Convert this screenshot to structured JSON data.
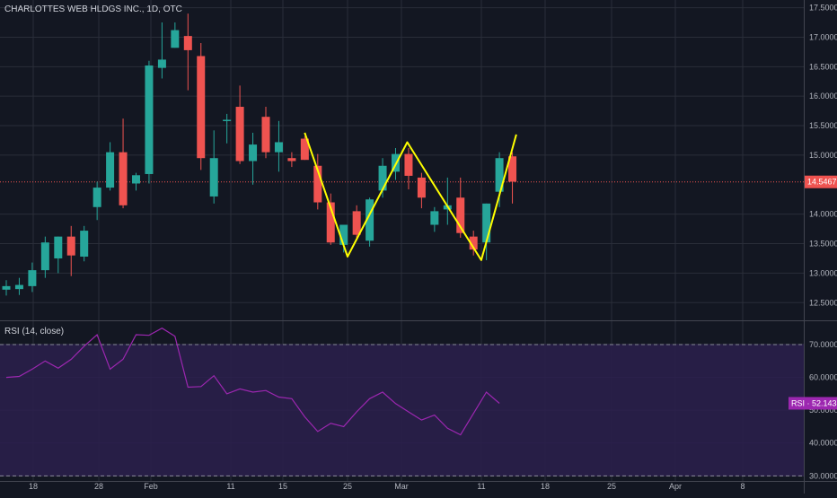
{
  "header": {
    "symbol_title": "CHARLOTTES WEB HLDGS INC., 1D, OTC",
    "rsi_title": "RSI (14, close)"
  },
  "colors": {
    "background": "#131722",
    "grid": "#2a2e39",
    "up": "#26a69a",
    "down": "#ef5350",
    "pattern": "#ffff00",
    "rsi_line": "#9c27b0",
    "rsi_band": "#2a1f4a",
    "last_price_line": "#ef5350"
  },
  "chart_data": [
    {
      "type": "candlestick",
      "title": "CHARLOTTES WEB HLDGS INC., 1D, OTC",
      "x_ticks": [
        "18",
        "28",
        "Feb",
        "11",
        "15",
        "25",
        "Mar",
        "11",
        "18",
        "25",
        "Apr",
        "8"
      ],
      "y_ticks": [
        "12.5000",
        "13.0000",
        "13.5000",
        "14.0000",
        "15.0000",
        "15.5000",
        "16.0000",
        "16.5000",
        "17.0000",
        "17.5000"
      ],
      "ylim": [
        12.2,
        17.6
      ],
      "last_price": 14.5467,
      "last_price_label": "14.5467",
      "candles": [
        {
          "o": 12.72,
          "h": 12.88,
          "l": 12.62,
          "c": 12.78
        },
        {
          "o": 12.73,
          "h": 12.92,
          "l": 12.63,
          "c": 12.8
        },
        {
          "o": 12.78,
          "h": 13.18,
          "l": 12.68,
          "c": 13.05
        },
        {
          "o": 13.05,
          "h": 13.62,
          "l": 12.92,
          "c": 13.52
        },
        {
          "o": 13.25,
          "h": 13.62,
          "l": 13.0,
          "c": 13.62
        },
        {
          "o": 13.62,
          "h": 13.8,
          "l": 12.95,
          "c": 13.3
        },
        {
          "o": 13.28,
          "h": 13.8,
          "l": 13.2,
          "c": 13.72
        },
        {
          "o": 14.12,
          "h": 14.55,
          "l": 13.9,
          "c": 14.45
        },
        {
          "o": 14.45,
          "h": 15.22,
          "l": 14.4,
          "c": 15.05
        },
        {
          "o": 15.05,
          "h": 15.62,
          "l": 14.1,
          "c": 14.15
        },
        {
          "o": 14.52,
          "h": 14.7,
          "l": 14.4,
          "c": 14.66
        },
        {
          "o": 14.68,
          "h": 16.6,
          "l": 14.52,
          "c": 16.52
        },
        {
          "o": 16.48,
          "h": 17.25,
          "l": 16.3,
          "c": 16.62
        },
        {
          "o": 16.82,
          "h": 17.25,
          "l": 16.82,
          "c": 17.12
        },
        {
          "o": 17.02,
          "h": 17.4,
          "l": 16.1,
          "c": 16.78
        },
        {
          "o": 16.68,
          "h": 16.9,
          "l": 14.75,
          "c": 14.95
        },
        {
          "o": 14.3,
          "h": 15.42,
          "l": 14.18,
          "c": 14.95
        },
        {
          "o": 15.6,
          "h": 15.7,
          "l": 15.2,
          "c": 15.6
        },
        {
          "o": 15.82,
          "h": 16.18,
          "l": 14.85,
          "c": 14.9
        },
        {
          "o": 14.9,
          "h": 15.38,
          "l": 14.5,
          "c": 15.18
        },
        {
          "o": 15.65,
          "h": 15.82,
          "l": 14.95,
          "c": 15.05
        },
        {
          "o": 15.05,
          "h": 15.58,
          "l": 14.72,
          "c": 15.22
        },
        {
          "o": 14.95,
          "h": 15.05,
          "l": 14.8,
          "c": 14.9
        },
        {
          "o": 15.28,
          "h": 15.32,
          "l": 14.92,
          "c": 14.92
        },
        {
          "o": 14.82,
          "h": 15.02,
          "l": 14.08,
          "c": 14.2
        },
        {
          "o": 14.2,
          "h": 14.35,
          "l": 13.48,
          "c": 13.52
        },
        {
          "o": 13.48,
          "h": 13.82,
          "l": 13.35,
          "c": 13.82
        },
        {
          "o": 14.05,
          "h": 14.15,
          "l": 13.6,
          "c": 13.65
        },
        {
          "o": 13.55,
          "h": 14.28,
          "l": 13.45,
          "c": 14.25
        },
        {
          "o": 14.4,
          "h": 14.95,
          "l": 14.28,
          "c": 14.82
        },
        {
          "o": 14.72,
          "h": 15.12,
          "l": 14.58,
          "c": 15.02
        },
        {
          "o": 15.02,
          "h": 15.12,
          "l": 14.42,
          "c": 14.65
        },
        {
          "o": 14.62,
          "h": 14.7,
          "l": 14.1,
          "c": 14.28
        },
        {
          "o": 13.82,
          "h": 14.12,
          "l": 13.7,
          "c": 14.05
        },
        {
          "o": 14.08,
          "h": 14.62,
          "l": 13.82,
          "c": 14.15
        },
        {
          "o": 14.28,
          "h": 14.62,
          "l": 13.6,
          "c": 13.68
        },
        {
          "o": 13.62,
          "h": 13.72,
          "l": 13.3,
          "c": 13.4
        },
        {
          "o": 13.52,
          "h": 14.18,
          "l": 13.22,
          "c": 14.18
        },
        {
          "o": 14.38,
          "h": 15.05,
          "l": 14.12,
          "c": 14.95
        },
        {
          "o": 14.98,
          "h": 15.05,
          "l": 14.18,
          "c": 14.55
        }
      ],
      "pattern_line": [
        {
          "i": 23.0,
          "v": 15.38
        },
        {
          "i": 26.3,
          "v": 13.28
        },
        {
          "i": 30.9,
          "v": 15.22
        },
        {
          "i": 36.6,
          "v": 13.22
        },
        {
          "i": 39.3,
          "v": 15.35
        }
      ]
    },
    {
      "type": "line",
      "title": "RSI (14, close)",
      "y_ticks": [
        "30.0000",
        "40.0000",
        "50.0000",
        "60.0000",
        "70.0000"
      ],
      "ylim": [
        29,
        76
      ],
      "band": [
        30,
        70
      ],
      "last_value_label": "RSI · 52.1438",
      "values": [
        60.0,
        60.3,
        62.5,
        65.0,
        62.8,
        65.5,
        69.5,
        73.0,
        62.5,
        65.5,
        73.0,
        72.8,
        75.0,
        72.5,
        57.0,
        57.2,
        60.5,
        55.0,
        56.5,
        55.5,
        56.0,
        54.0,
        53.5,
        48.0,
        43.5,
        46.0,
        45.0,
        49.5,
        53.5,
        55.5,
        52.0,
        49.5,
        47.0,
        48.5,
        44.5,
        42.5,
        49.0,
        55.5,
        52.1
      ]
    }
  ]
}
